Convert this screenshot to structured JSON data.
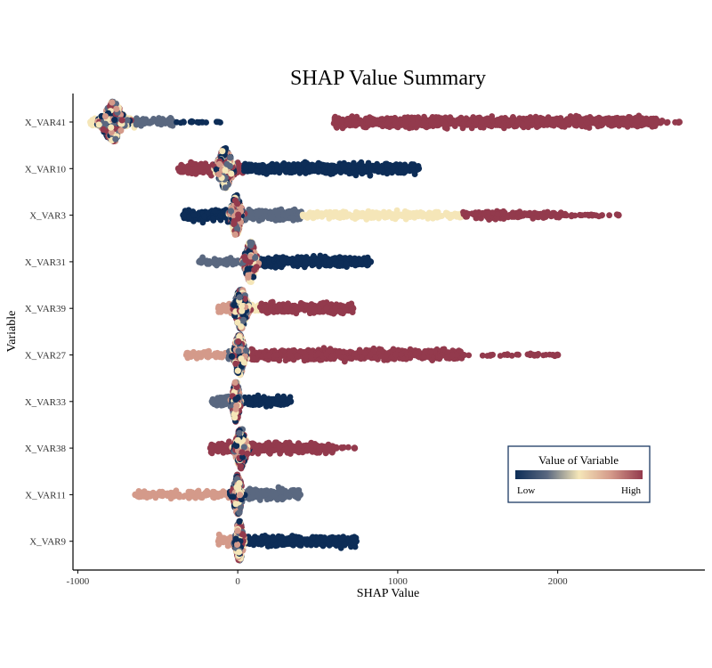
{
  "chart_data": {
    "type": "scatter",
    "subtype": "beeswarm",
    "title": "SHAP Value Summary",
    "xlabel": "SHAP Value",
    "ylabel": "Variable",
    "xlim": [
      -1030,
      2920
    ],
    "xticks": [
      -1000,
      0,
      1000,
      2000
    ],
    "xtick_labels": [
      "-1000",
      "0",
      "1000",
      "2000"
    ],
    "grid": false,
    "legend": {
      "title": "Value of Variable",
      "low_label": "Low",
      "high_label": "High",
      "placement": "bottom-right",
      "gradient": [
        "#0d2d57",
        "#3d4f73",
        "#8b8d96",
        "#f5e6b8",
        "#d49a8a",
        "#933a4d"
      ]
    },
    "colors": {
      "low": "#0d2d57",
      "mid_low": "#5a6880",
      "mid": "#f5e6b8",
      "mid_high": "#d49a8a",
      "high": "#933a4d"
    },
    "categories": [
      "X_VAR41",
      "X_VAR10",
      "X_VAR3",
      "X_VAR31",
      "X_VAR39",
      "X_VAR27",
      "X_VAR33",
      "X_VAR38",
      "X_VAR11",
      "X_VAR9"
    ],
    "series": [
      {
        "variable": "X_VAR41",
        "core_center": -780,
        "core_halfwidth": 90,
        "left_min": -920,
        "min": -920,
        "max": 2760,
        "segments": [
          {
            "from": -920,
            "to": -640,
            "color": "mid",
            "density": "dense"
          },
          {
            "from": -640,
            "to": -400,
            "color": "mid_low",
            "density": "medium"
          },
          {
            "from": -400,
            "to": -100,
            "color": "low",
            "density": "sparse"
          },
          {
            "from": 600,
            "to": 2620,
            "color": "high",
            "density": "dense"
          },
          {
            "from": 2620,
            "to": 2760,
            "color": "high",
            "density": "sparse"
          }
        ]
      },
      {
        "variable": "X_VAR10",
        "core_center": -80,
        "core_halfwidth": 60,
        "min": -370,
        "max": 1130,
        "segments": [
          {
            "from": -370,
            "to": 40,
            "color": "high",
            "density": "dense"
          },
          {
            "from": 40,
            "to": 1130,
            "color": "low",
            "density": "dense"
          }
        ]
      },
      {
        "variable": "X_VAR3",
        "core_center": -10,
        "core_halfwidth": 40,
        "min": -340,
        "max": 2380,
        "segments": [
          {
            "from": -340,
            "to": 0,
            "color": "low",
            "density": "dense"
          },
          {
            "from": 0,
            "to": 400,
            "color": "mid_low",
            "density": "dense"
          },
          {
            "from": 400,
            "to": 1400,
            "color": "mid",
            "density": "medium"
          },
          {
            "from": 1400,
            "to": 2050,
            "color": "high",
            "density": "medium"
          },
          {
            "from": 2050,
            "to": 2380,
            "color": "high",
            "density": "sparse"
          }
        ]
      },
      {
        "variable": "X_VAR31",
        "core_center": 80,
        "core_halfwidth": 45,
        "min": -240,
        "max": 830,
        "segments": [
          {
            "from": -240,
            "to": 60,
            "color": "mid_low",
            "density": "medium"
          },
          {
            "from": 60,
            "to": 130,
            "color": "mid_high",
            "density": "dense"
          },
          {
            "from": 130,
            "to": 830,
            "color": "low",
            "density": "dense"
          }
        ]
      },
      {
        "variable": "X_VAR39",
        "core_center": 20,
        "core_halfwidth": 50,
        "min": -120,
        "max": 720,
        "segments": [
          {
            "from": -120,
            "to": 80,
            "color": "mid_high",
            "density": "dense"
          },
          {
            "from": 80,
            "to": 140,
            "color": "mid",
            "density": "medium"
          },
          {
            "from": 140,
            "to": 720,
            "color": "high",
            "density": "dense"
          }
        ]
      },
      {
        "variable": "X_VAR27",
        "core_center": 10,
        "core_halfwidth": 45,
        "min": -320,
        "max": 2000,
        "segments": [
          {
            "from": -320,
            "to": -60,
            "color": "mid_high",
            "density": "medium"
          },
          {
            "from": -60,
            "to": 60,
            "color": "mid_low",
            "density": "dense"
          },
          {
            "from": 60,
            "to": 1400,
            "color": "high",
            "density": "dense"
          },
          {
            "from": 1400,
            "to": 2000,
            "color": "high",
            "density": "sparse"
          }
        ]
      },
      {
        "variable": "X_VAR33",
        "core_center": -10,
        "core_halfwidth": 28,
        "min": -160,
        "max": 330,
        "segments": [
          {
            "from": -160,
            "to": 20,
            "color": "mid_low",
            "density": "dense"
          },
          {
            "from": 20,
            "to": 330,
            "color": "low",
            "density": "dense"
          }
        ]
      },
      {
        "variable": "X_VAR38",
        "core_center": 20,
        "core_halfwidth": 45,
        "min": -170,
        "max": 730,
        "segments": [
          {
            "from": -170,
            "to": 60,
            "color": "high",
            "density": "dense"
          },
          {
            "from": 60,
            "to": 600,
            "color": "high",
            "density": "dense"
          },
          {
            "from": 20,
            "to": 80,
            "color": "low",
            "density": "medium"
          },
          {
            "from": 600,
            "to": 730,
            "color": "high",
            "density": "sparse"
          }
        ]
      },
      {
        "variable": "X_VAR11",
        "core_center": 0,
        "core_halfwidth": 32,
        "min": -640,
        "max": 390,
        "segments": [
          {
            "from": -640,
            "to": -50,
            "color": "mid_high",
            "density": "medium"
          },
          {
            "from": -50,
            "to": 40,
            "color": "low",
            "density": "dense"
          },
          {
            "from": 40,
            "to": 390,
            "color": "mid_low",
            "density": "dense"
          }
        ]
      },
      {
        "variable": "X_VAR9",
        "core_center": 10,
        "core_halfwidth": 28,
        "min": -120,
        "max": 740,
        "segments": [
          {
            "from": -120,
            "to": 60,
            "color": "mid_high",
            "density": "dense"
          },
          {
            "from": 60,
            "to": 740,
            "color": "low",
            "density": "dense"
          }
        ]
      }
    ]
  }
}
